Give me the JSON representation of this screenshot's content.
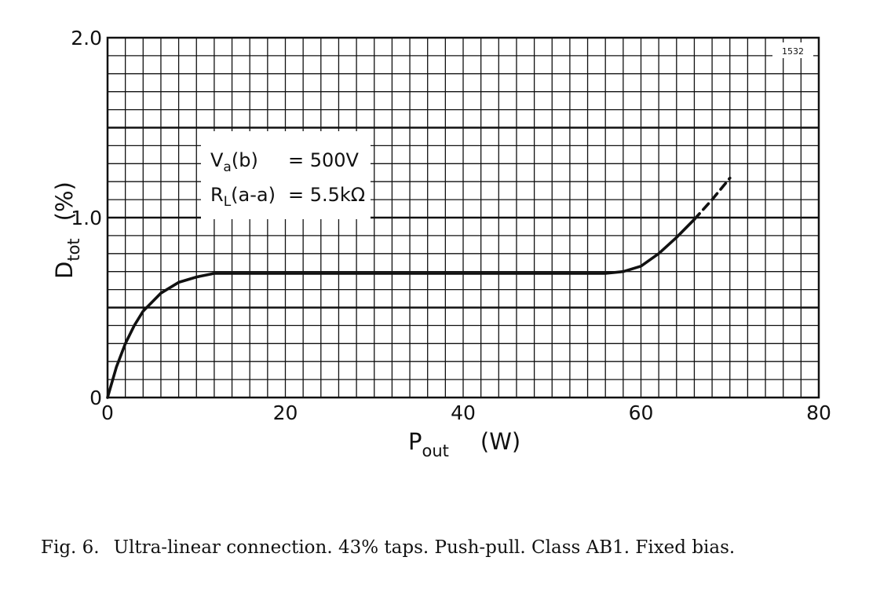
{
  "chart_data": {
    "type": "line",
    "figure_number": "1532",
    "xlabel_main": "P",
    "xlabel_sub": "out",
    "xlabel_unit": "(W)",
    "ylabel_main": "D",
    "ylabel_sub": "tot",
    "ylabel_unit": "(%)",
    "xlim": [
      0,
      80
    ],
    "ylim": [
      0,
      2.0
    ],
    "x_ticks": [
      {
        "value": 0,
        "label": "0"
      },
      {
        "value": 20,
        "label": "20"
      },
      {
        "value": 40,
        "label": "40"
      },
      {
        "value": 60,
        "label": "60"
      },
      {
        "value": 80,
        "label": "80"
      }
    ],
    "y_ticks": [
      {
        "value": 0,
        "label": "0"
      },
      {
        "value": 1.0,
        "label": "1.0"
      },
      {
        "value": 2.0,
        "label": "2.0"
      }
    ],
    "grid": true,
    "grid_minor_x_step": 2,
    "grid_minor_y_step": 0.1,
    "grid_major_y": [
      0.5,
      1.0,
      1.5
    ],
    "annotations": [
      {
        "main": "V",
        "sub": "a",
        "tail": "(b)",
        "value": "= 500V"
      },
      {
        "main": "R",
        "sub": "L",
        "tail": "(a-a)",
        "value": "= 5.5kΩ"
      }
    ],
    "series": [
      {
        "style": "solid",
        "x": [
          0,
          1,
          2,
          3,
          4,
          6,
          8,
          10,
          12,
          15,
          20,
          30,
          40,
          50,
          56,
          58,
          60,
          62,
          64,
          66
        ],
        "y": [
          0,
          0.17,
          0.3,
          0.4,
          0.48,
          0.58,
          0.64,
          0.67,
          0.69,
          0.69,
          0.69,
          0.69,
          0.69,
          0.69,
          0.69,
          0.7,
          0.73,
          0.8,
          0.89,
          0.99
        ]
      },
      {
        "style": "dashed",
        "x": [
          66,
          68,
          70
        ],
        "y": [
          0.99,
          1.1,
          1.22
        ]
      }
    ]
  },
  "caption": {
    "figure": "Fig. 6.",
    "text": "Ultra-linear connection. 43% taps. Push-pull. Class AB1. Fixed bias."
  }
}
